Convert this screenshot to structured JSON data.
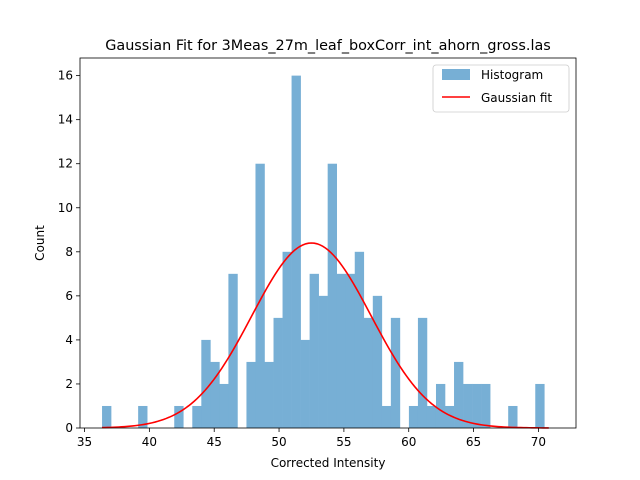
{
  "chart_data": {
    "type": "bar",
    "title": "Gaussian Fit for 3Meas_27m_leaf_boxCorr_int_ahorn_gross.las",
    "xlabel": "Corrected Intensity",
    "ylabel": "Count",
    "xlim": [
      34.65,
      72.9
    ],
    "ylim": [
      0,
      16.8
    ],
    "xticks": [
      35,
      40,
      45,
      50,
      55,
      60,
      65,
      70
    ],
    "yticks": [
      0,
      2,
      4,
      6,
      8,
      10,
      12,
      14,
      16
    ],
    "grid": false,
    "legend_position": "top-right",
    "histogram": {
      "name": "Histogram",
      "color": "#77AFD5",
      "bin_start": 36.35,
      "bin_width": 0.696,
      "counts": [
        1,
        0,
        0,
        0,
        1,
        0,
        0,
        0,
        1,
        0,
        1,
        4,
        3,
        2,
        7,
        0,
        3,
        12,
        3,
        5,
        8,
        16,
        4,
        7,
        6,
        12,
        7,
        7,
        8,
        5,
        6,
        1,
        5,
        0,
        1,
        5,
        1,
        2,
        1,
        3,
        2,
        2,
        2,
        0,
        0,
        1,
        0,
        0,
        2
      ]
    },
    "fit": {
      "name": "Gaussian fit",
      "color": "#FF0000",
      "mean": 52.5,
      "sigma": 4.6,
      "peak": 8.4,
      "x_range": [
        36.35,
        70.8
      ]
    }
  }
}
